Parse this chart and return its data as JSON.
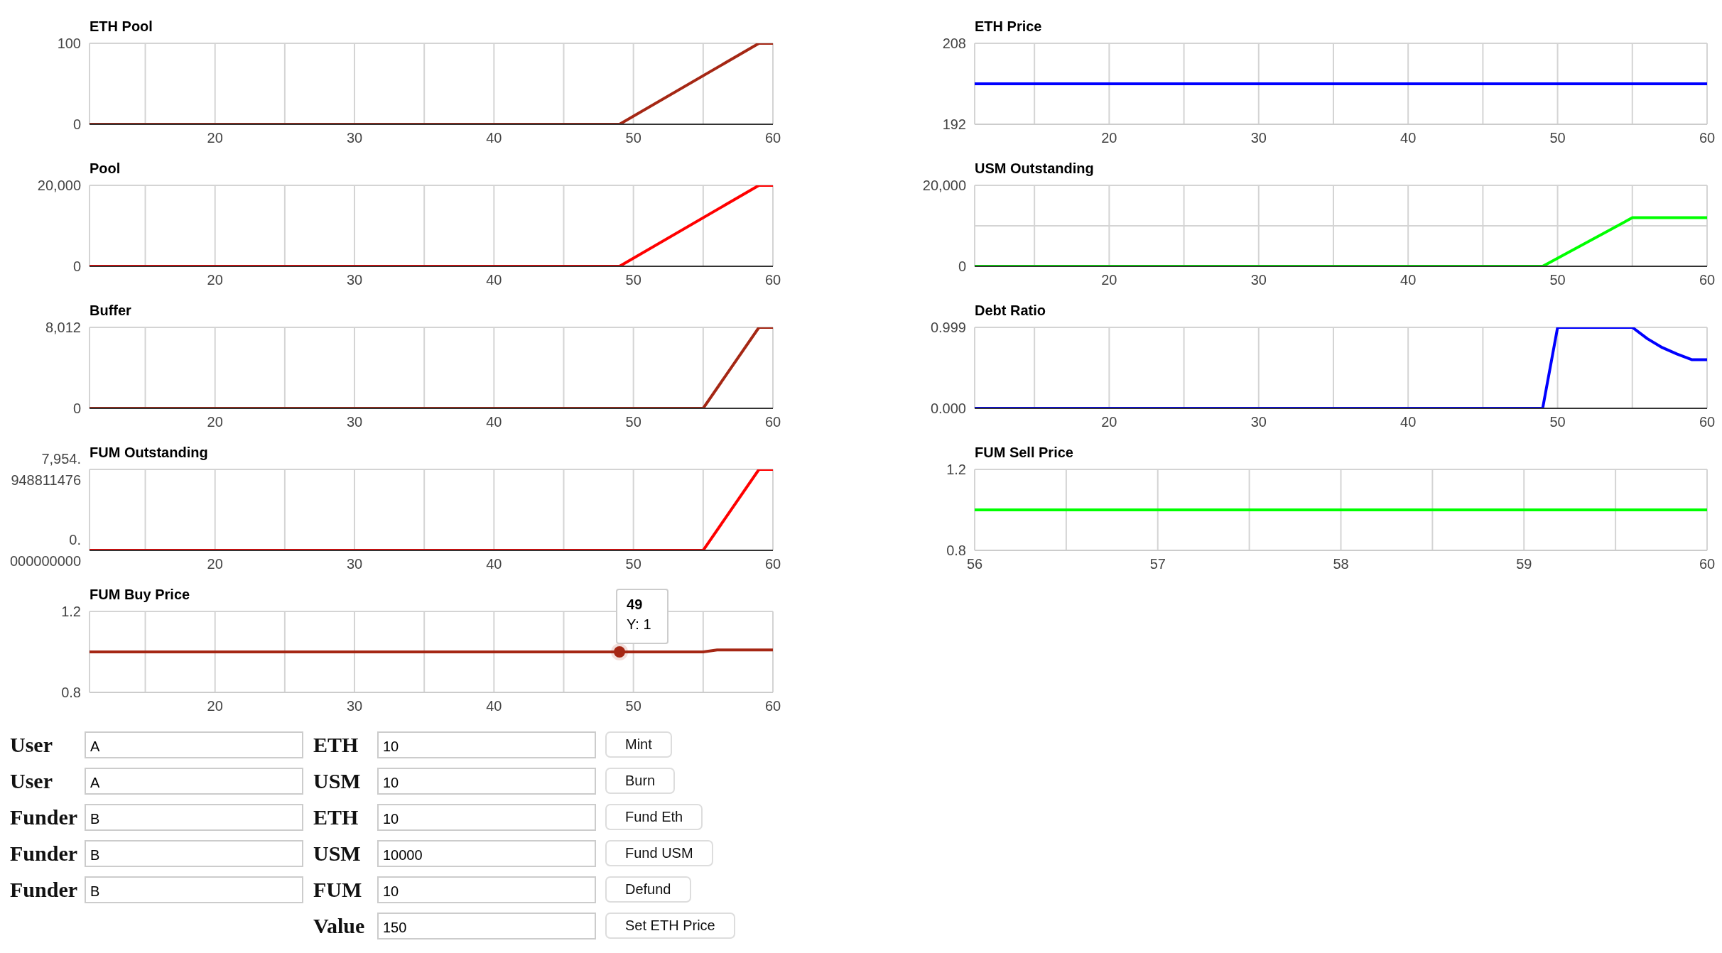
{
  "chart_data": [
    {
      "type": "line",
      "title": "ETH Pool",
      "x": [
        11,
        49,
        59,
        60
      ],
      "xlim": [
        11,
        60
      ],
      "xticks": [
        {
          "value": 15,
          "label": null
        },
        20,
        {
          "value": 25,
          "label": null
        },
        30,
        {
          "value": 35,
          "label": null
        },
        40,
        {
          "value": 45,
          "label": null
        },
        50,
        {
          "value": 55,
          "label": null
        },
        60
      ],
      "ylim": [
        0,
        100
      ],
      "yticks": [
        0,
        100
      ],
      "grid": true,
      "series": [
        {
          "color": "#a52714",
          "values": [
            0,
            0,
            100,
            100
          ]
        }
      ]
    },
    {
      "type": "line",
      "title": "ETH Price",
      "x": [
        11,
        60
      ],
      "xlim": [
        11,
        60
      ],
      "xticks": [
        {
          "value": 15,
          "label": null
        },
        20,
        {
          "value": 25,
          "label": null
        },
        30,
        {
          "value": 35,
          "label": null
        },
        40,
        {
          "value": 45,
          "label": null
        },
        50,
        {
          "value": 55,
          "label": null
        },
        60
      ],
      "ylim": [
        192,
        208
      ],
      "yticks": [
        192,
        208
      ],
      "grid": true,
      "series": [
        {
          "color": "#0000ff",
          "values": [
            200,
            200
          ]
        }
      ]
    },
    {
      "type": "line",
      "title": "Pool",
      "x": [
        11,
        49,
        59,
        60
      ],
      "xlim": [
        11,
        60
      ],
      "xticks": [
        {
          "value": 15,
          "label": null
        },
        20,
        {
          "value": 25,
          "label": null
        },
        30,
        {
          "value": 35,
          "label": null
        },
        40,
        {
          "value": 45,
          "label": null
        },
        50,
        {
          "value": 55,
          "label": null
        },
        60
      ],
      "ylim": [
        0,
        20000
      ],
      "yticks": [
        0,
        {
          "value": 20000,
          "label": "20,000"
        }
      ],
      "grid": true,
      "series": [
        {
          "color": "#ff0000",
          "values": [
            0,
            0,
            20000,
            20000
          ]
        }
      ]
    },
    {
      "type": "line",
      "title": "USM Outstanding",
      "x": [
        11,
        49,
        55,
        60
      ],
      "xlim": [
        11,
        60
      ],
      "xticks": [
        {
          "value": 15,
          "label": null
        },
        20,
        {
          "value": 25,
          "label": null
        },
        30,
        {
          "value": 35,
          "label": null
        },
        40,
        {
          "value": 45,
          "label": null
        },
        50,
        {
          "value": 55,
          "label": null
        },
        60
      ],
      "ylim": [
        0,
        20000
      ],
      "yticks": [
        0,
        {
          "value": 10000,
          "label": null
        },
        {
          "value": 20000,
          "label": "20,000"
        }
      ],
      "grid": true,
      "series": [
        {
          "color": "#00ff00",
          "values": [
            0,
            0,
            12000,
            12000
          ]
        }
      ]
    },
    {
      "type": "line",
      "title": "Buffer",
      "x": [
        11,
        55,
        59,
        60
      ],
      "xlim": [
        11,
        60
      ],
      "xticks": [
        {
          "value": 15,
          "label": null
        },
        20,
        {
          "value": 25,
          "label": null
        },
        30,
        {
          "value": 35,
          "label": null
        },
        40,
        {
          "value": 45,
          "label": null
        },
        50,
        {
          "value": 55,
          "label": null
        },
        60
      ],
      "ylim": [
        0,
        8012
      ],
      "yticks": [
        0,
        {
          "value": 8012,
          "label": "8,012"
        }
      ],
      "grid": true,
      "series": [
        {
          "color": "#a52714",
          "values": [
            0,
            0,
            8012,
            8012
          ]
        }
      ]
    },
    {
      "type": "line",
      "title": "Debt Ratio",
      "x": [
        11,
        49,
        50,
        55,
        56,
        57,
        58,
        59,
        60
      ],
      "xlim": [
        11,
        60
      ],
      "xticks": [
        {
          "value": 15,
          "label": null
        },
        20,
        {
          "value": 25,
          "label": null
        },
        30,
        {
          "value": 35,
          "label": null
        },
        40,
        {
          "value": 45,
          "label": null
        },
        50,
        {
          "value": 55,
          "label": null
        },
        60
      ],
      "ylim": [
        0,
        0.999
      ],
      "yticks": [
        {
          "value": 0,
          "label": "0.000"
        },
        0.999
      ],
      "grid": true,
      "series": [
        {
          "color": "#0000ff",
          "values": [
            0,
            0,
            0.999,
            0.999,
            0.86,
            0.75,
            0.67,
            0.6,
            0.6
          ]
        }
      ]
    },
    {
      "type": "line",
      "title": "FUM Outstanding",
      "x": [
        11,
        55,
        59,
        60
      ],
      "xlim": [
        11,
        60
      ],
      "xticks": [
        {
          "value": 15,
          "label": null
        },
        20,
        {
          "value": 25,
          "label": null
        },
        30,
        {
          "value": 35,
          "label": null
        },
        40,
        {
          "value": 45,
          "label": null
        },
        50,
        {
          "value": 55,
          "label": null
        },
        60
      ],
      "ylim": [
        0,
        7954.948811476
      ],
      "yticks": [
        {
          "value": 0,
          "label": "0.000000000"
        },
        {
          "value": 7954.948811476,
          "label": "7,954.948811476"
        }
      ],
      "grid": true,
      "series": [
        {
          "color": "#ff0000",
          "values": [
            0,
            0,
            7954.948811476,
            7954.948811476
          ]
        }
      ]
    },
    {
      "type": "line",
      "title": "FUM Sell Price",
      "x": [
        56,
        60
      ],
      "xlim": [
        56,
        60
      ],
      "xticks": [
        56,
        {
          "value": 56.5,
          "label": null
        },
        57,
        {
          "value": 57.5,
          "label": null
        },
        58,
        {
          "value": 58.5,
          "label": null
        },
        59,
        {
          "value": 59.5,
          "label": null
        },
        60
      ],
      "ylim": [
        0.8,
        1.2
      ],
      "yticks": [
        0.8,
        1.2
      ],
      "grid": true,
      "series": [
        {
          "color": "#00ff00",
          "values": [
            1,
            1
          ]
        }
      ]
    },
    {
      "type": "line",
      "title": "FUM Buy Price",
      "x": [
        11,
        49,
        55,
        56,
        60
      ],
      "xlim": [
        11,
        60
      ],
      "xticks": [
        {
          "value": 15,
          "label": null
        },
        20,
        {
          "value": 25,
          "label": null
        },
        30,
        {
          "value": 35,
          "label": null
        },
        40,
        {
          "value": 45,
          "label": null
        },
        50,
        {
          "value": 55,
          "label": null
        },
        60
      ],
      "ylim": [
        0.8,
        1.2
      ],
      "yticks": [
        0.8,
        1.2
      ],
      "grid": true,
      "series": [
        {
          "color": "#a52714",
          "values": [
            1,
            1,
            1,
            1.01,
            1.01
          ]
        }
      ],
      "annotations": [
        {
          "text": "49",
          "x": 49,
          "y": 1
        },
        {
          "text": "Y: 1",
          "x": 49,
          "y": 1
        }
      ]
    },
    {
      "type": "other",
      "annotations": [
        "User",
        "A",
        "ETH",
        "10",
        "Mint",
        "User",
        "A",
        "USM",
        "10",
        "Burn",
        "Funder",
        "B",
        "ETH",
        "10",
        "Fund Eth",
        "Funder",
        "B",
        "USM",
        "10000",
        "Fund USM",
        "Funder",
        "B",
        "FUM",
        "10",
        "Defund",
        "Value",
        "150",
        "Set ETH Price"
      ]
    }
  ]
}
